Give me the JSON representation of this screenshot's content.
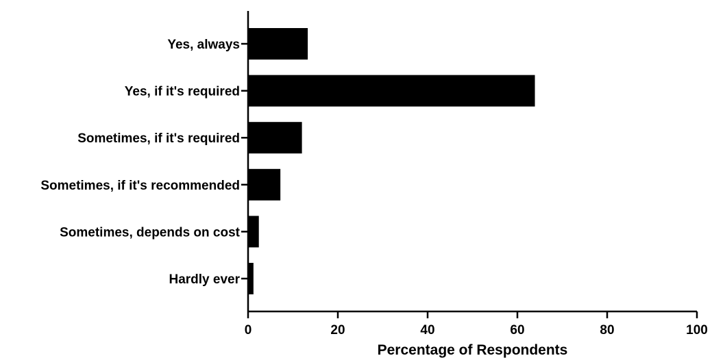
{
  "chart_data": {
    "type": "bar",
    "orientation": "horizontal",
    "categories": [
      "Yes, always",
      "Yes, if it's required",
      "Sometimes, if it's required",
      "Sometimes, if it's recommended",
      "Sometimes, depends on cost",
      "Hardly ever"
    ],
    "values": [
      13.3,
      63.9,
      12.0,
      7.2,
      2.4,
      1.2
    ],
    "title": "",
    "xlabel": "Percentage of Respondents",
    "ylabel": "",
    "xlim": [
      0,
      100
    ],
    "xticks": [
      "0",
      "20",
      "40",
      "60",
      "80",
      "100"
    ],
    "grid": false,
    "legend": "none",
    "bar_color": "#000000"
  }
}
